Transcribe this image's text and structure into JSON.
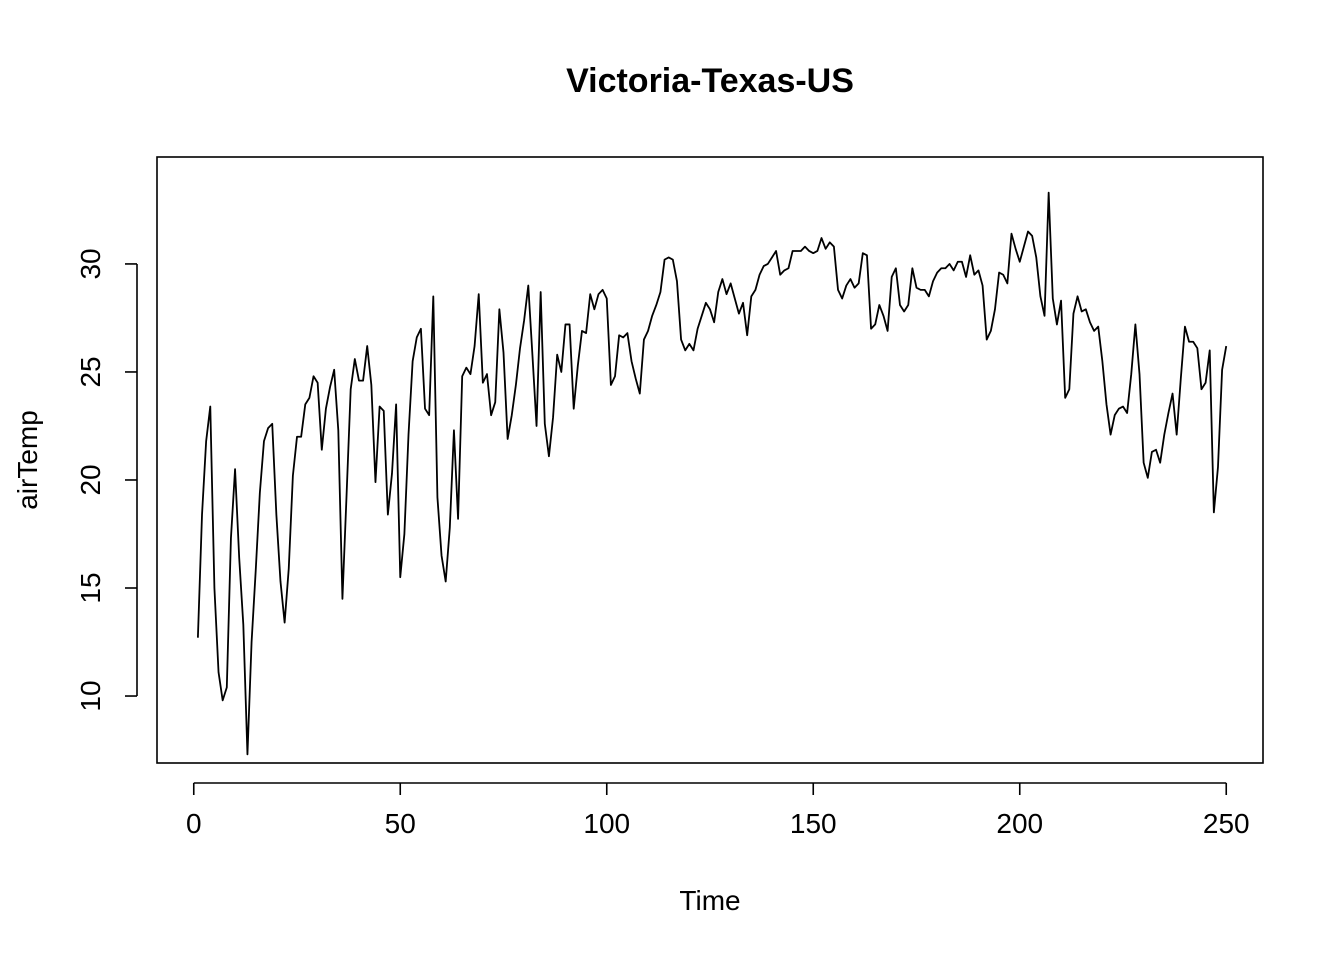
{
  "chart_data": {
    "type": "line",
    "title": "Victoria-Texas-US",
    "xlabel": "Time",
    "ylabel": "airTemp",
    "xlim": [
      -8.9,
      258.9
    ],
    "ylim": [
      6.9,
      34.95
    ],
    "xticks": [
      0,
      50,
      100,
      150,
      200,
      250
    ],
    "yticks": [
      10,
      15,
      20,
      25,
      30
    ],
    "grid": false,
    "legend": "none",
    "line_color": "#000000",
    "series": [
      {
        "x_start": 1,
        "x_step": 1,
        "values": [
          12.7,
          18.4,
          21.8,
          23.4,
          15.0,
          11.1,
          9.8,
          10.4,
          17.3,
          20.5,
          16.4,
          13.3,
          7.3,
          12.5,
          15.8,
          19.4,
          21.8,
          22.4,
          22.6,
          18.4,
          15.3,
          13.4,
          15.9,
          20.2,
          22.0,
          22.0,
          23.5,
          23.8,
          24.8,
          24.5,
          21.4,
          23.3,
          24.3,
          25.1,
          22.3,
          14.5,
          19.3,
          24.2,
          25.6,
          24.6,
          24.6,
          26.2,
          24.4,
          19.9,
          23.4,
          23.2,
          18.4,
          20.3,
          23.5,
          15.5,
          17.5,
          22.1,
          25.5,
          26.6,
          27.0,
          23.3,
          23.0,
          28.5,
          19.2,
          16.5,
          15.3,
          17.8,
          22.3,
          18.2,
          24.8,
          25.2,
          24.9,
          26.2,
          28.6,
          24.5,
          24.9,
          23.0,
          23.6,
          27.9,
          25.9,
          21.9,
          23.0,
          24.4,
          26.1,
          27.4,
          29.0,
          25.8,
          22.5,
          28.7,
          22.6,
          21.1,
          22.9,
          25.8,
          25.0,
          27.2,
          27.2,
          23.3,
          25.3,
          26.9,
          26.8,
          28.6,
          27.9,
          28.6,
          28.8,
          28.4,
          24.4,
          24.8,
          26.7,
          26.6,
          26.8,
          25.5,
          24.7,
          24.0,
          26.5,
          26.9,
          27.6,
          28.1,
          28.7,
          30.2,
          30.3,
          30.2,
          29.2,
          26.5,
          26.0,
          26.3,
          26.0,
          27.0,
          27.6,
          28.2,
          27.9,
          27.3,
          28.7,
          29.3,
          28.6,
          29.1,
          28.4,
          27.7,
          28.2,
          26.7,
          28.5,
          28.8,
          29.5,
          29.9,
          30.0,
          30.3,
          30.6,
          29.5,
          29.7,
          29.8,
          30.6,
          30.6,
          30.6,
          30.8,
          30.6,
          30.5,
          30.6,
          31.2,
          30.7,
          31.0,
          30.8,
          28.8,
          28.4,
          29.0,
          29.3,
          28.9,
          29.1,
          30.5,
          30.4,
          27.0,
          27.2,
          28.1,
          27.6,
          26.9,
          29.4,
          29.8,
          28.1,
          27.8,
          28.1,
          29.8,
          28.9,
          28.8,
          28.8,
          28.5,
          29.2,
          29.6,
          29.8,
          29.8,
          30.0,
          29.7,
          30.1,
          30.1,
          29.4,
          30.4,
          29.5,
          29.7,
          29.0,
          26.5,
          26.9,
          27.9,
          29.6,
          29.5,
          29.1,
          31.4,
          30.7,
          30.1,
          30.8,
          31.5,
          31.3,
          30.3,
          28.5,
          27.6,
          33.3,
          28.4,
          27.2,
          28.3,
          23.8,
          24.2,
          27.7,
          28.5,
          27.8,
          27.9,
          27.3,
          26.9,
          27.1,
          25.5,
          23.5,
          22.1,
          23.0,
          23.3,
          23.4,
          23.1,
          24.9,
          27.2,
          24.9,
          20.8,
          20.1,
          21.3,
          21.4,
          20.8,
          22.1,
          23.1,
          24.0,
          22.1,
          24.7,
          27.1,
          26.4,
          26.4,
          26.1,
          24.2,
          24.5,
          26.0,
          18.5,
          20.6,
          25.1,
          26.2
        ]
      }
    ]
  }
}
